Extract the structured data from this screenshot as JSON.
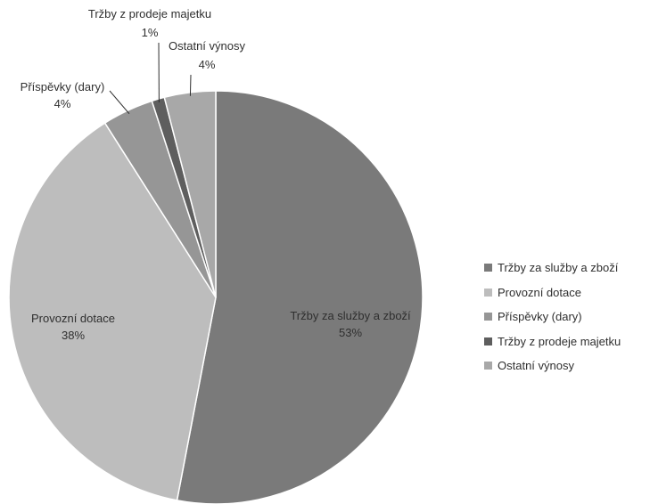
{
  "chart_data": {
    "type": "pie",
    "title": "",
    "slices": [
      {
        "label": "Tržby za služby a zboží",
        "value": 53,
        "display": "53%",
        "color": "#7a7a7a",
        "label_style": "inside"
      },
      {
        "label": "Provozní dotace",
        "value": 38,
        "display": "38%",
        "color": "#bdbdbd",
        "label_style": "inside"
      },
      {
        "label": "Příspěvky (dary)",
        "value": 4,
        "display": "4%",
        "color": "#969696",
        "label_style": "outside"
      },
      {
        "label": "Tržby z prodeje majetku",
        "value": 1,
        "display": "1%",
        "color": "#5e5e5e",
        "label_style": "outside"
      },
      {
        "label": "Ostatní výnosy",
        "value": 4,
        "display": "4%",
        "color": "#a8a8a8",
        "label_style": "outside"
      }
    ],
    "legend": {
      "position": "right",
      "entries": [
        "Tržby za služby a zboží",
        "Provozní dotace",
        "Příspěvky (dary)",
        "Tržby z prodeje majetku",
        "Ostatní výnosy"
      ]
    }
  }
}
